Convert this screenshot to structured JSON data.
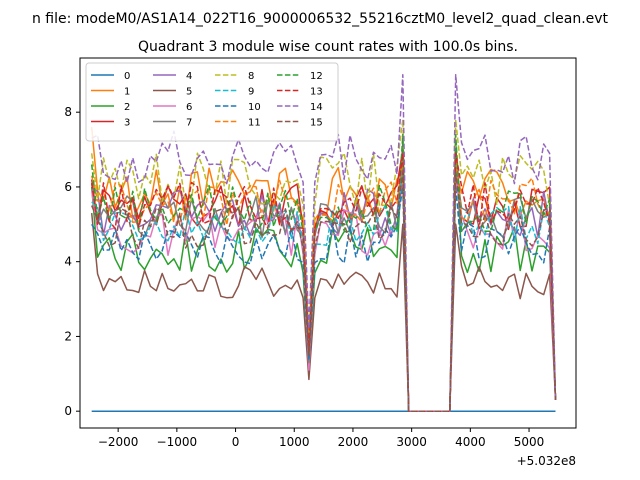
{
  "chart_data": {
    "type": "line",
    "suptitle": "n file: modeM0/AS1A14_022T16_9000006532_55216cztM0_level2_quad_clean.evt",
    "title": "Quadrant 3 module wise count rates with 100.0s bins.",
    "xlabel": "",
    "ylabel": "",
    "x_offset_label": "+5.032e8",
    "xlim": [
      -2650,
      5800
    ],
    "ylim": [
      -0.45,
      9.45
    ],
    "xticks": [
      -2000,
      -1000,
      0,
      1000,
      2000,
      3000,
      4000,
      5000
    ],
    "xtick_labels": [
      "−2000",
      "−1000",
      "0",
      "1000",
      "2000",
      "3000",
      "4000",
      "5000"
    ],
    "yticks": [
      0,
      2,
      4,
      6,
      8
    ],
    "ytick_labels": [
      "0",
      "2",
      "4",
      "6",
      "8"
    ],
    "legend_position": "upper-left",
    "legend_ncol": 4,
    "gap_regions": [
      [
        2900,
        3000
      ],
      [
        3600,
        3700
      ]
    ],
    "x_start": -2450,
    "step": 100,
    "n_points": 80,
    "series": [
      {
        "name": "0",
        "color": "#1f77b4",
        "dash": "solid",
        "base": 0,
        "amp": 0,
        "seed": 0
      },
      {
        "name": "1",
        "color": "#ff7f0e",
        "dash": "solid",
        "base": 5.8,
        "amp": 0.45,
        "seed": 1,
        "start": 7.6,
        "dip": 1.6,
        "end": 5.6,
        "peak": 6.4
      },
      {
        "name": "2",
        "color": "#2ca02c",
        "dash": "solid",
        "base": 4.3,
        "amp": 0.4,
        "seed": 2,
        "start": 6.0,
        "dip": 1.2,
        "end": 4.6,
        "peak": 7.2
      },
      {
        "name": "3",
        "color": "#d62728",
        "dash": "solid",
        "base": 5.5,
        "amp": 0.4,
        "seed": 3,
        "start": 6.2,
        "dip": 1.3,
        "end": 5.3,
        "peak": 7.0
      },
      {
        "name": "4",
        "color": "#9467bd",
        "dash": "solid",
        "base": 5.3,
        "amp": 0.4,
        "seed": 4,
        "start": 6.0,
        "dip": 1.4,
        "end": 5.1,
        "peak": 6.6
      },
      {
        "name": "5",
        "color": "#8c564b",
        "dash": "solid",
        "base": 3.45,
        "amp": 0.28,
        "seed": 5,
        "start": 5.3,
        "dip": 0.85,
        "end": 3.6,
        "peak": 5.0
      },
      {
        "name": "6",
        "color": "#e377c2",
        "dash": "solid",
        "base": 4.8,
        "amp": 0.4,
        "seed": 6,
        "start": 5.9,
        "dip": 1.1,
        "end": 4.8,
        "peak": 6.2
      },
      {
        "name": "7",
        "color": "#7f7f7f",
        "dash": "solid",
        "base": 5.2,
        "amp": 0.35,
        "seed": 7,
        "start": 6.1,
        "dip": 1.3,
        "end": 5.1,
        "peak": 6.6
      },
      {
        "name": "8",
        "color": "#bcbd22",
        "dash": "dashed",
        "base": 6.2,
        "amp": 0.45,
        "seed": 8,
        "start": 6.9,
        "dip": 1.9,
        "end": 6.1,
        "peak": 7.8
      },
      {
        "name": "9",
        "color": "#17becf",
        "dash": "dashed",
        "base": 5.0,
        "amp": 0.35,
        "seed": 9,
        "start": 5.6,
        "dip": 1.6,
        "end": 5.0,
        "peak": 6.6
      },
      {
        "name": "10",
        "color": "#1f77b4",
        "dash": "dashed",
        "base": 4.5,
        "amp": 0.35,
        "seed": 10,
        "start": 5.0,
        "dip": 1.4,
        "end": 4.5,
        "peak": 6.0
      },
      {
        "name": "11",
        "color": "#ff7f0e",
        "dash": "dashed",
        "base": 5.6,
        "amp": 0.4,
        "seed": 11,
        "start": 6.3,
        "dip": 1.7,
        "end": 5.5,
        "peak": 6.8
      },
      {
        "name": "12",
        "color": "#2ca02c",
        "dash": "dashed",
        "base": 5.4,
        "amp": 0.4,
        "seed": 12,
        "start": 6.6,
        "dip": 1.5,
        "end": 5.5,
        "peak": 7.4
      },
      {
        "name": "13",
        "color": "#d62728",
        "dash": "dashed",
        "base": 5.5,
        "amp": 0.4,
        "seed": 13,
        "start": 6.1,
        "dip": 1.6,
        "end": 5.5,
        "peak": 6.9
      },
      {
        "name": "14",
        "color": "#9467bd",
        "dash": "dashed",
        "base": 6.8,
        "amp": 0.45,
        "seed": 14,
        "start": 7.3,
        "dip": 2.2,
        "end": 6.6,
        "peak": 9.0
      },
      {
        "name": "15",
        "color": "#8c564b",
        "dash": "dashed",
        "base": 4.9,
        "amp": 0.35,
        "seed": 15,
        "start": 5.5,
        "dip": 1.5,
        "end": 4.6,
        "peak": 6.4
      }
    ]
  }
}
